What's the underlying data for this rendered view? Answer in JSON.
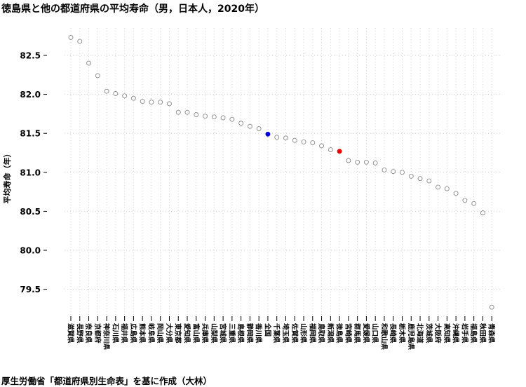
{
  "title": "徳島県と他の都道府県の平均寿命（男，日本人，2020年）",
  "footer": "厚生労働省「都道府県別生命表」を基に作成（大林）",
  "chart_data": {
    "type": "scatter",
    "title": "徳島県と他の都道府県の平均寿命（男，日本人，2020年）",
    "xlabel": "",
    "ylabel": "平均寿命（年）",
    "ylim": [
      79.25,
      82.8
    ],
    "yticks": [
      79.5,
      80.0,
      80.5,
      81.0,
      81.5,
      82.0,
      82.5
    ],
    "ytick_labels": [
      "79.5",
      "80.0",
      "80.5",
      "81.0",
      "81.5",
      "82.0",
      "82.5"
    ],
    "grid": true,
    "colors": {
      "default": "#888888",
      "national": "#0000dd",
      "tokushima": "#ee0000"
    },
    "categories": [
      "滋賀県",
      "長野県",
      "奈良県",
      "京都府",
      "神奈川県",
      "石川県",
      "福井県",
      "広島県",
      "熊本県",
      "岐阜県",
      "岡山県",
      "大分県",
      "東京都",
      "愛知県",
      "富山県",
      "兵庫県",
      "山梨県",
      "宮城県",
      "三重県",
      "島根県",
      "静岡県",
      "香川県",
      "全国",
      "千葉県",
      "埼玉県",
      "佐賀県",
      "山形県",
      "福岡県",
      "鳥取県",
      "新潟県",
      "徳島県",
      "宮崎県",
      "群馬県",
      "愛媛県",
      "山口県",
      "和歌山県",
      "長崎県",
      "栃木県",
      "鹿児島県",
      "北海道",
      "茨城県",
      "大阪府",
      "高知県",
      "沖縄県",
      "岩手県",
      "福島県",
      "秋田県",
      "青森県"
    ],
    "values": [
      82.73,
      82.68,
      82.4,
      82.24,
      82.04,
      82.01,
      81.98,
      81.95,
      81.91,
      81.9,
      81.9,
      81.88,
      81.77,
      81.77,
      81.74,
      81.72,
      81.71,
      81.7,
      81.68,
      81.63,
      81.59,
      81.56,
      81.49,
      81.45,
      81.44,
      81.41,
      81.39,
      81.38,
      81.34,
      81.29,
      81.27,
      81.15,
      81.13,
      81.13,
      81.12,
      81.03,
      81.01,
      81.0,
      80.95,
      80.92,
      80.89,
      80.81,
      80.79,
      80.73,
      80.64,
      80.6,
      80.48,
      79.27
    ],
    "highlight": {
      "national_index": 22,
      "tokushima_index": 30
    }
  }
}
